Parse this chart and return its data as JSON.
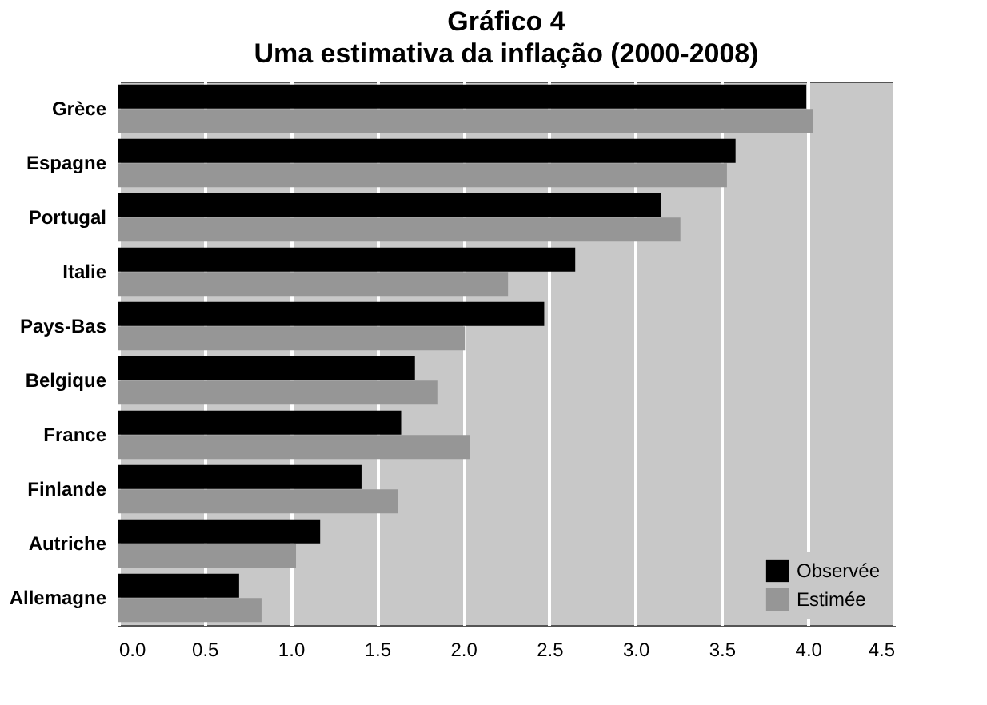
{
  "chart_data": {
    "type": "bar",
    "orientation": "horizontal",
    "title": "Gráfico 4",
    "subtitle": "Uma estimativa da inflação (2000-2008)",
    "categories": [
      "Grèce",
      "Espagne",
      "Portugal",
      "Italie",
      "Pays-Bas",
      "Belgique",
      "France",
      "Finlande",
      "Autriche",
      "Allemagne"
    ],
    "series": [
      {
        "name": "Observée",
        "color": "#000000",
        "values": [
          3.99,
          3.58,
          3.15,
          2.65,
          2.47,
          1.72,
          1.64,
          1.41,
          1.17,
          0.7
        ]
      },
      {
        "name": "Estimée",
        "color": "#969696",
        "values": [
          4.03,
          3.53,
          3.26,
          2.26,
          2.01,
          1.85,
          2.04,
          1.62,
          1.03,
          0.83
        ]
      }
    ],
    "xlim": [
      0,
      4.5
    ],
    "xticks": [
      {
        "value": 0,
        "label": "0.0"
      },
      0.5,
      {
        "value": 1,
        "label": "1.0"
      },
      1.5,
      {
        "value": 2,
        "label": "2.0"
      },
      2.5,
      {
        "value": 3,
        "label": "3.0"
      },
      3.5,
      {
        "value": 4,
        "label": "4.0"
      },
      4.5
    ],
    "grid": "x",
    "legend": "bottom right"
  }
}
